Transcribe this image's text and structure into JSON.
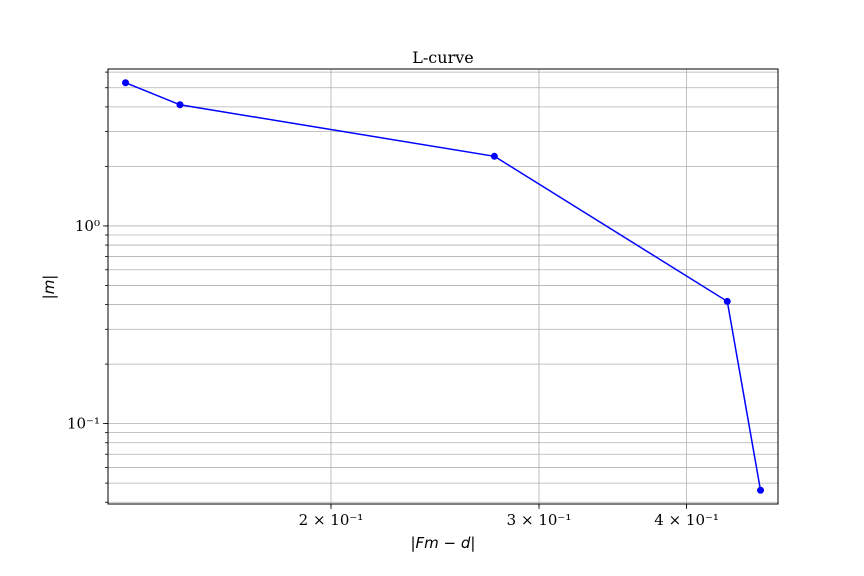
{
  "chart_data": {
    "type": "line",
    "title": "L-curve",
    "xlabel": "|Fm − d|",
    "ylabel": "|m|",
    "xscale": "log",
    "yscale": "log",
    "xlim": [
      0.1295,
      0.478
    ],
    "ylim": [
      0.0392,
      6.22
    ],
    "grid": "major and minor",
    "x_ticks": [
      {
        "value": 0.2,
        "label": "2 × 10⁻¹"
      },
      {
        "value": 0.3,
        "label": "3 × 10⁻¹"
      },
      {
        "value": 0.4,
        "label": "4 × 10⁻¹"
      }
    ],
    "y_ticks": [
      {
        "value": 1,
        "label": "10⁰"
      },
      {
        "value": 0.1,
        "label": "10⁻¹"
      }
    ],
    "series": [
      {
        "color": "#0000ff",
        "marker": "circle",
        "x": [
          0.134,
          0.149,
          0.275,
          0.433,
          0.462
        ],
        "y": [
          5.3,
          4.1,
          2.25,
          0.415,
          0.046
        ]
      }
    ]
  }
}
